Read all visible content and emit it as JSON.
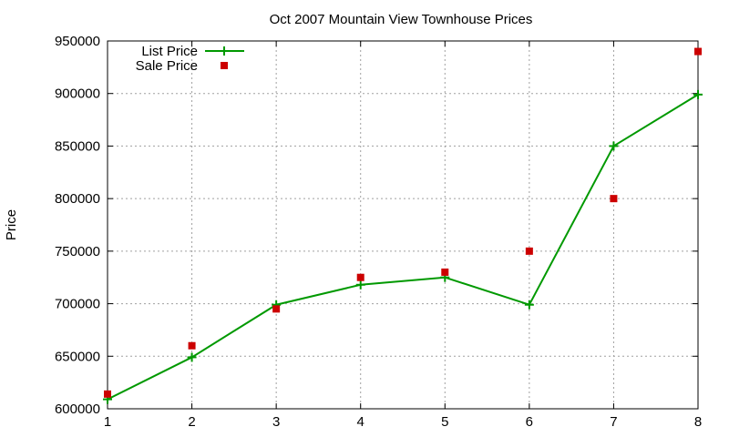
{
  "chart_data": {
    "type": "line",
    "title": "Oct 2007 Mountain View Townhouse Prices",
    "xlabel": "",
    "ylabel": "Price",
    "x": [
      1,
      2,
      3,
      4,
      5,
      6,
      7,
      8
    ],
    "xlim": [
      1,
      8
    ],
    "ylim": [
      600000,
      950000
    ],
    "xticks": [
      "1",
      "2",
      "3",
      "4",
      "5",
      "6",
      "7",
      "8"
    ],
    "yticks": [
      "600000",
      "650000",
      "700000",
      "750000",
      "800000",
      "850000",
      "900000",
      "950000"
    ],
    "grid": true,
    "legend_position": "top-left",
    "series": [
      {
        "name": "List Price",
        "style": "line-with-plus-markers",
        "color": "#009900",
        "values": [
          609000,
          649000,
          699000,
          718000,
          725000,
          699000,
          850000,
          899000
        ]
      },
      {
        "name": "Sale Price",
        "style": "square-markers",
        "color": "#cc0000",
        "values": [
          614000,
          660000,
          695000,
          725000,
          730000,
          750000,
          800000,
          940000
        ]
      }
    ]
  }
}
